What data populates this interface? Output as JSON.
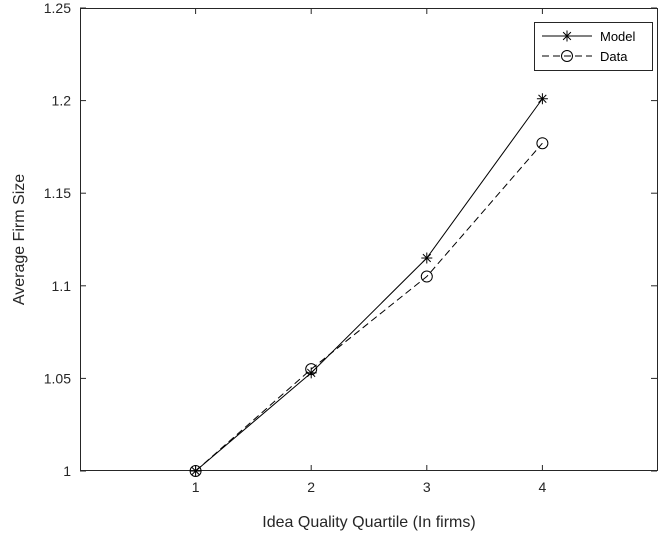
{
  "chart_data": {
    "type": "line",
    "title": "",
    "xlabel": "Idea Quality Quartile (In firms)",
    "ylabel": "Average Firm Size",
    "xlim": [
      0,
      5
    ],
    "ylim": [
      1,
      1.25
    ],
    "xticks": [
      1,
      2,
      3,
      4
    ],
    "xtick_labels": [
      "1",
      "2",
      "3",
      "4"
    ],
    "yticks": [
      1,
      1.05,
      1.1,
      1.15,
      1.2,
      1.25
    ],
    "ytick_labels": [
      "1",
      "1.05",
      "1.1",
      "1.15",
      "1.2",
      "1.25"
    ],
    "grid": false,
    "legend_position": "top-right",
    "x": [
      1,
      2,
      3,
      4
    ],
    "series": [
      {
        "name": "Model",
        "values": [
          1.0,
          1.053,
          1.115,
          1.201
        ],
        "line_style": "solid",
        "marker": "asterisk",
        "color": "#000000"
      },
      {
        "name": "Data",
        "values": [
          1.0,
          1.055,
          1.105,
          1.177
        ],
        "line_style": "dashed",
        "marker": "circle",
        "color": "#000000"
      }
    ]
  }
}
